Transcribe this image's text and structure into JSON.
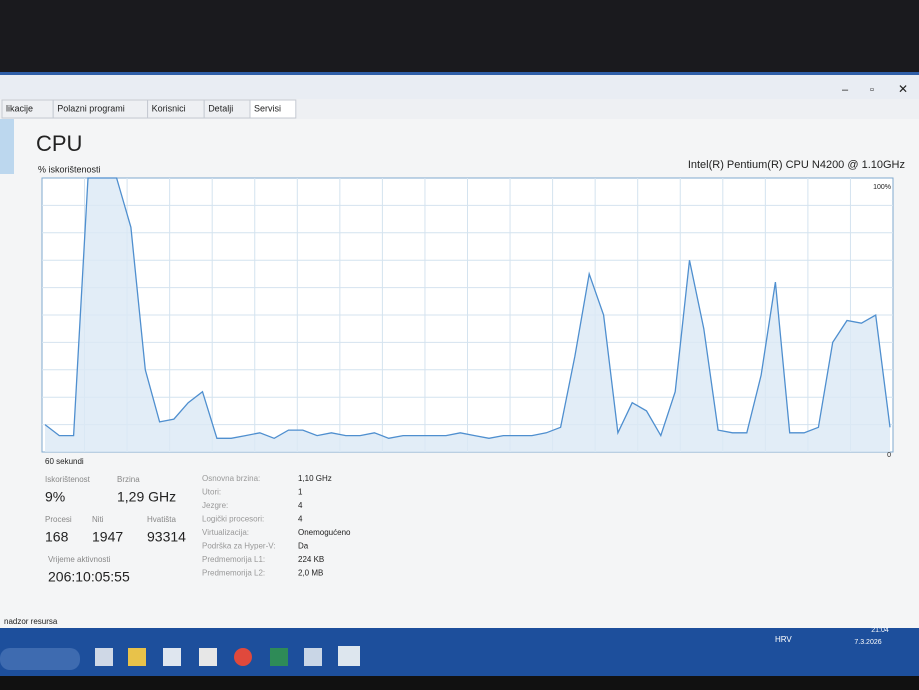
{
  "tabs": [
    "likacije",
    "Polazni programi",
    "Korisnici",
    "Detalji",
    "Servisi"
  ],
  "header": {
    "title": "CPU",
    "subtitle": "% iskorištenosti",
    "processor": "Intel(R) Pentium(R) CPU N4200 @ 1.10GHz"
  },
  "cpu_graph": {
    "type": "line",
    "x_label": "60 sekundi",
    "values": [
      10,
      6,
      6,
      100,
      100,
      100,
      82,
      30,
      11,
      12,
      18,
      22,
      5,
      5,
      6,
      7,
      5,
      8,
      8,
      6,
      7,
      6,
      6,
      7,
      5,
      6,
      6,
      6,
      6,
      7,
      6,
      5,
      6,
      6,
      6,
      7,
      9,
      35,
      65,
      50,
      7,
      18,
      15,
      6,
      22,
      70,
      45,
      8,
      7,
      7,
      28,
      62,
      7,
      7,
      9,
      40,
      48,
      47,
      50,
      9
    ],
    "ylim": [
      0,
      100
    ],
    "yticks": [
      0,
      {
        "value": 100,
        "label": "100%"
      }
    ],
    "color": "#4f8fcf"
  },
  "stats": [
    {
      "label": "Iskorištenost",
      "value": "9%"
    },
    {
      "label": "Brzina",
      "value": "1,29 GHz"
    },
    {
      "label": "Procesi",
      "value": "168"
    },
    {
      "label": "Niti",
      "value": "1947"
    },
    {
      "label": "Hvatišta",
      "value": "93314"
    },
    {
      "label": "Vrijeme aktivnosti",
      "value": "206:10:05:55"
    }
  ],
  "details": [
    {
      "label": "Osnovna brzina:",
      "value": "1,10 GHz"
    },
    {
      "label": "Utori:",
      "value": "1"
    },
    {
      "label": "Jezgre:",
      "value": "4"
    },
    {
      "label": "Logički procesori:",
      "value": "4"
    },
    {
      "label": "Virtualizacija:",
      "value": "Onemogućeno"
    },
    {
      "label": "Podrška za Hyper-V:",
      "value": "Da"
    },
    {
      "label": "Predmemorija L1:",
      "value": "224 KB"
    },
    {
      "label": "Predmemorija L2:",
      "value": "2,0 MB"
    }
  ],
  "footer": "nadzor resursa",
  "taskbar": {
    "language": "HRV",
    "time": "21:04",
    "date": "7.3.2026"
  }
}
